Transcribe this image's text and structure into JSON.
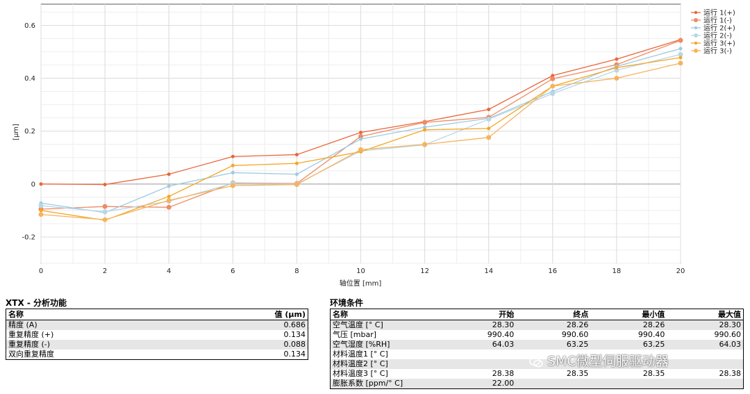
{
  "chart_data": {
    "type": "line",
    "xlabel": "轴位置 [mm]",
    "ylabel": "[μm]",
    "xlim": [
      0,
      20
    ],
    "ylim": [
      -0.3,
      0.68
    ],
    "x_ticks": [
      0,
      2,
      4,
      6,
      8,
      10,
      12,
      14,
      16,
      18,
      20
    ],
    "y_ticks": [
      -0.2,
      0,
      0.2,
      0.4,
      0.6
    ],
    "y_tick_labels": [
      "-0.2",
      "0",
      "0.2",
      "0.4",
      "0.6"
    ],
    "grid": true,
    "legend_position": "top-right",
    "x": [
      0,
      2,
      4,
      6,
      8,
      10,
      12,
      14,
      16,
      18,
      20
    ],
    "series": [
      {
        "name": "运行 1(+)",
        "color": "#e8663a",
        "values": [
          0,
          -0.002,
          0.037,
          0.104,
          0.111,
          0.195,
          0.236,
          0.282,
          0.41,
          0.472,
          0.546
        ]
      },
      {
        "name": "运行 1(-)",
        "color": "#ef8a62",
        "values": [
          -0.095,
          -0.085,
          -0.088,
          0.004,
          0.002,
          0.18,
          0.233,
          0.252,
          0.398,
          0.451,
          0.543
        ]
      },
      {
        "name": "运行 2(+)",
        "color": "#9ecae1",
        "values": [
          -0.072,
          -0.108,
          -0.008,
          0.043,
          0.037,
          0.17,
          0.215,
          0.248,
          0.35,
          0.445,
          0.512
        ]
      },
      {
        "name": "运行 2(-)",
        "color": "#b7d7e8",
        "values": [
          -0.082,
          -0.105,
          -0.065,
          0.002,
          0.0,
          0.125,
          0.148,
          0.245,
          0.342,
          0.43,
          0.49
        ]
      },
      {
        "name": "运行 3(+)",
        "color": "#f5a623",
        "values": [
          -0.1,
          -0.137,
          -0.047,
          0.07,
          0.078,
          0.122,
          0.205,
          0.21,
          0.37,
          0.44,
          0.478
        ]
      },
      {
        "name": "运行 3(-)",
        "color": "#f7b35c",
        "values": [
          -0.115,
          -0.135,
          -0.062,
          -0.006,
          -0.002,
          0.13,
          0.15,
          0.176,
          0.37,
          0.4,
          0.457
        ]
      }
    ]
  },
  "analysis": {
    "title": "XTX - 分析功能",
    "header_name": "名称",
    "header_value": "值 (μm)",
    "rows": [
      {
        "name": "精度 (A)",
        "value": "0.686"
      },
      {
        "name": "重复精度 (+)",
        "value": "0.134"
      },
      {
        "name": "重复精度 (-)",
        "value": "0.088"
      },
      {
        "name": "双向重复精度",
        "value": "0.134"
      }
    ]
  },
  "env": {
    "title": "环境条件",
    "headers": [
      "名称",
      "开始",
      "终点",
      "最小值",
      "最大值"
    ],
    "rows": [
      [
        "空气温度 [° C]",
        "28.30",
        "28.26",
        "28.26",
        "28.30"
      ],
      [
        "气压 [mbar]",
        "990.40",
        "990.60",
        "990.40",
        "990.60"
      ],
      [
        "空气湿度 [%RH]",
        "64.03",
        "63.25",
        "63.25",
        "64.03"
      ],
      [
        "材料温度1 [° C]",
        "",
        "",
        "",
        ""
      ],
      [
        "材料温度2 [° C]",
        "",
        "",
        "",
        ""
      ],
      [
        "材料温度3 [° C]",
        "28.38",
        "28.35",
        "28.35",
        "28.38"
      ],
      [
        "膨胀系数 [ppm/° C]",
        "22.00",
        "",
        "",
        ""
      ]
    ]
  },
  "watermark": "SMC微型伺服驱动器"
}
